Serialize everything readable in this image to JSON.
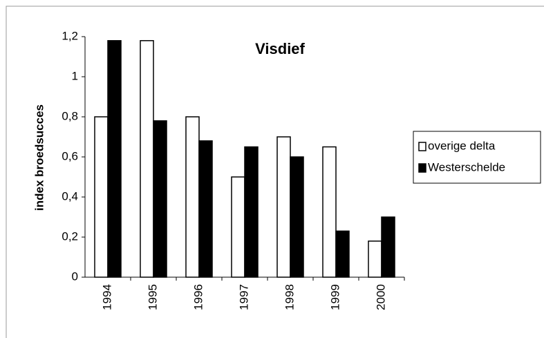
{
  "chart_data": {
    "type": "bar",
    "title": "Visdief",
    "y_label": "index broedsucces",
    "categories": [
      "1994",
      "1995",
      "1996",
      "1997",
      "1998",
      "1999",
      "2000"
    ],
    "series": [
      {
        "name": "overige delta",
        "color": "#ffffff",
        "values": [
          0.8,
          1.18,
          0.8,
          0.5,
          0.7,
          0.65,
          0.18
        ]
      },
      {
        "name": "Westerschelde",
        "color": "#000000",
        "values": [
          1.18,
          0.78,
          0.68,
          0.65,
          0.6,
          0.23,
          0.3
        ]
      }
    ],
    "ylim": [
      0,
      1.2
    ],
    "yticks": [
      0,
      {
        "value": 0.2,
        "label": "0,2"
      },
      {
        "value": 0.4,
        "label": "0,4"
      },
      {
        "value": 0.6,
        "label": "0,6"
      },
      {
        "value": 0.8,
        "label": "0,8"
      },
      1,
      {
        "value": 1.2,
        "label": "1,2"
      }
    ],
    "grid": false,
    "legend": "right"
  }
}
